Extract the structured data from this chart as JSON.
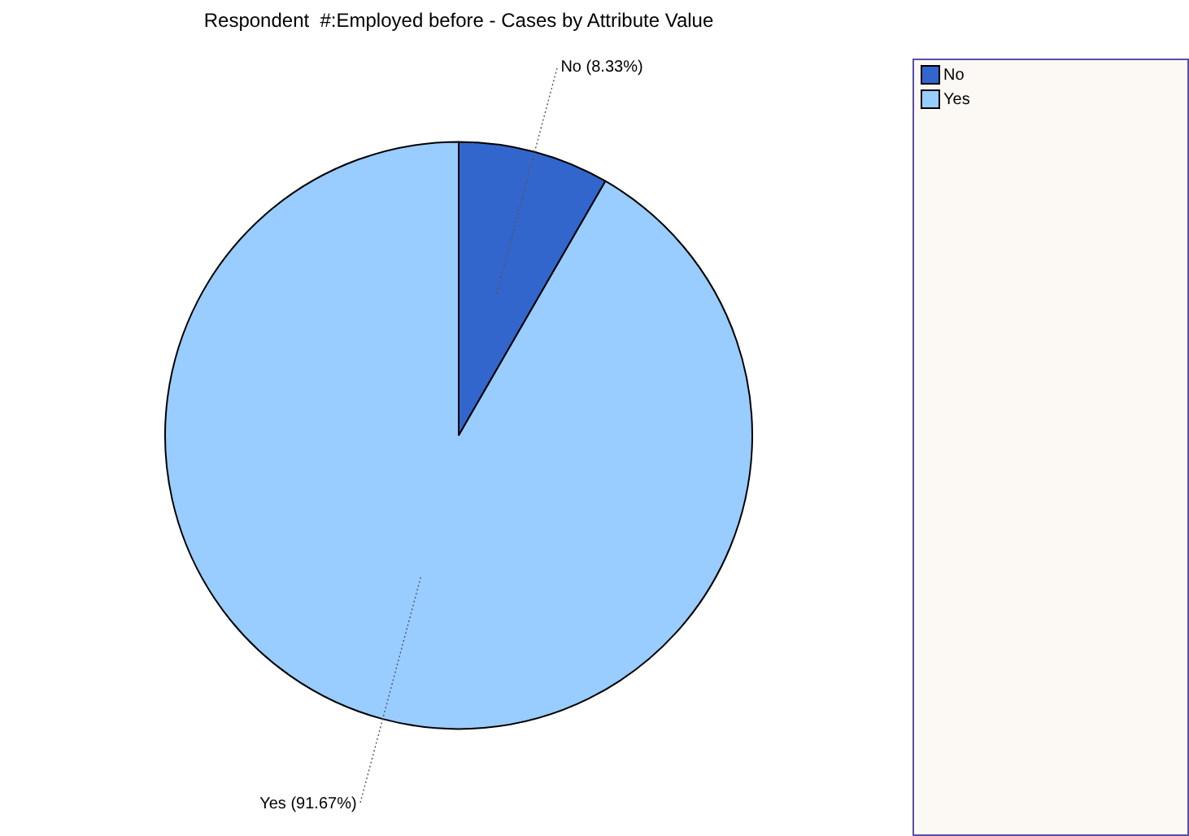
{
  "chart_data": {
    "type": "pie",
    "title": "Respondent  #:Employed before - Cases by Attribute Value",
    "categories": [
      "No",
      "Yes"
    ],
    "values": [
      8.33,
      91.67
    ],
    "colors": [
      "#3366cc",
      "#99ccff"
    ],
    "value_labels": [
      "No (8.33%)",
      "Yes (91.67%)"
    ],
    "legend": "right"
  }
}
